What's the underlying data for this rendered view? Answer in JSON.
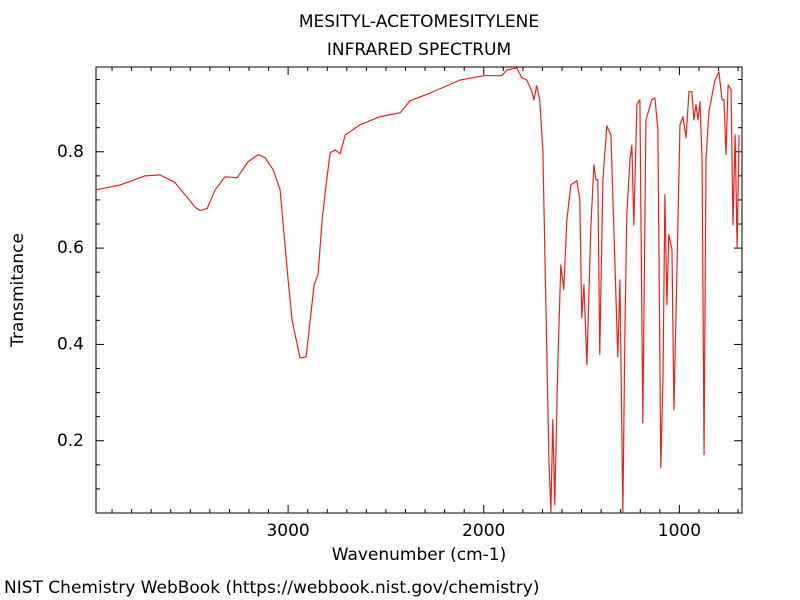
{
  "chart_data": {
    "type": "line",
    "title": "MESITYL-ACETOMESITYLENE",
    "subtitle": "INFRARED SPECTRUM",
    "x_label": "Wavenumber (cm-1)",
    "y_label": "Transmitance",
    "footer": "NIST Chemistry WebBook (https://webbook.nist.gov/chemistry)",
    "color": "#e8221c",
    "xlim": [
      3982,
      680
    ],
    "ylim": [
      0.05,
      0.976
    ],
    "xticks": [
      3000,
      2000,
      1000
    ],
    "yticks": [
      0.2,
      0.4,
      0.6,
      0.8
    ],
    "xminorticks": [
      3900,
      3800,
      3700,
      3600,
      3500,
      3400,
      3300,
      3200,
      3100,
      2900,
      2800,
      2700,
      2600,
      2500,
      2400,
      2300,
      2200,
      2100,
      1900,
      1800,
      1700,
      1600,
      1500,
      1400,
      1300,
      1200,
      1100,
      900,
      800,
      700
    ],
    "yminorticks": [
      0.1,
      0.15,
      0.25,
      0.3,
      0.35,
      0.45,
      0.5,
      0.55,
      0.65,
      0.7,
      0.75,
      0.85,
      0.9,
      0.95
    ],
    "tick_direction": "in",
    "x": [
      3982,
      3859,
      3731,
      3655,
      3578,
      3527,
      3473,
      3450,
      3414,
      3373,
      3322,
      3261,
      3205,
      3153,
      3118,
      3077,
      3041,
      3000,
      2980,
      2959,
      2939,
      2908,
      2887,
      2867,
      2847,
      2826,
      2806,
      2785,
      2760,
      2734,
      2708,
      2632,
      2529,
      2427,
      2376,
      2274,
      2120,
      2000,
      1908,
      1882,
      1831,
      1806,
      1780,
      1754,
      1744,
      1729,
      1714,
      1698,
      1683,
      1667,
      1657,
      1647,
      1637,
      1621,
      1606,
      1591,
      1575,
      1555,
      1524,
      1509,
      1499,
      1488,
      1473,
      1453,
      1437,
      1427,
      1417,
      1407,
      1391,
      1371,
      1350,
      1330,
      1315,
      1304,
      1289,
      1279,
      1269,
      1253,
      1243,
      1233,
      1217,
      1202,
      1187,
      1171,
      1141,
      1125,
      1110,
      1095,
      1084,
      1074,
      1064,
      1054,
      1038,
      1028,
      1013,
      997,
      982,
      966,
      951,
      936,
      926,
      915,
      905,
      895,
      884,
      874,
      864,
      849,
      818,
      798,
      782,
      772,
      762,
      751,
      736,
      726,
      715,
      705,
      695
    ],
    "values": [
      0.721,
      0.731,
      0.75,
      0.752,
      0.736,
      0.711,
      0.684,
      0.678,
      0.682,
      0.721,
      0.748,
      0.746,
      0.779,
      0.794,
      0.788,
      0.763,
      0.721,
      0.534,
      0.451,
      0.41,
      0.372,
      0.374,
      0.451,
      0.524,
      0.545,
      0.659,
      0.731,
      0.798,
      0.804,
      0.796,
      0.835,
      0.856,
      0.873,
      0.881,
      0.906,
      0.922,
      0.949,
      0.958,
      0.958,
      0.97,
      0.974,
      0.954,
      0.949,
      0.925,
      0.908,
      0.937,
      0.908,
      0.804,
      0.493,
      0.161,
      0.051,
      0.244,
      0.067,
      0.368,
      0.565,
      0.514,
      0.659,
      0.731,
      0.74,
      0.7,
      0.455,
      0.524,
      0.358,
      0.638,
      0.773,
      0.742,
      0.742,
      0.379,
      0.742,
      0.854,
      0.835,
      0.576,
      0.374,
      0.534,
      0.051,
      0.41,
      0.669,
      0.783,
      0.814,
      0.648,
      0.898,
      0.908,
      0.237,
      0.866,
      0.908,
      0.912,
      0.846,
      0.144,
      0.327,
      0.711,
      0.482,
      0.628,
      0.597,
      0.264,
      0.545,
      0.856,
      0.873,
      0.829,
      0.925,
      0.925,
      0.866,
      0.898,
      0.866,
      0.904,
      0.783,
      0.171,
      0.783,
      0.883,
      0.949,
      0.966,
      0.908,
      0.908,
      0.794,
      0.939,
      0.929,
      0.648,
      0.835,
      0.601,
      0.835
    ]
  }
}
